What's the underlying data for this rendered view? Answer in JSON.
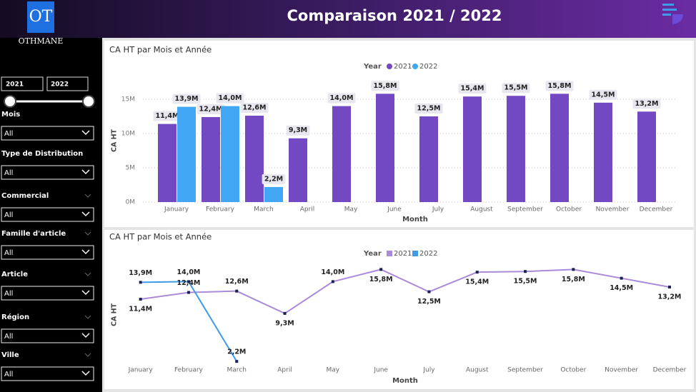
{
  "header": {
    "title": "Comparaison 2021 / 2022"
  },
  "logo": {
    "initials": "OT",
    "name": "OTHMANE"
  },
  "year_slider": {
    "from": "2021",
    "to": "2022"
  },
  "filters": [
    {
      "label": "Mois",
      "value": "All"
    },
    {
      "label": "Type de Distribution",
      "value": "All"
    },
    {
      "label": "Commercial",
      "value": "All"
    },
    {
      "label": "Famille d'article",
      "value": "All"
    },
    {
      "label": "Article",
      "value": "All"
    },
    {
      "label": "Région",
      "value": "All"
    },
    {
      "label": "Ville",
      "value": "All"
    }
  ],
  "chart_data": [
    {
      "type": "bar",
      "title": "CA HT par Mois et Année",
      "legend_title": "Year",
      "x_label": "Month",
      "y_label": "CA HT",
      "categories": [
        "January",
        "February",
        "March",
        "April",
        "May",
        "June",
        "July",
        "August",
        "September",
        "October",
        "November",
        "December"
      ],
      "series": [
        {
          "name": "2021",
          "color": "#7249c2",
          "values": [
            11400000,
            12400000,
            12600000,
            9300000,
            14000000,
            15800000,
            12500000,
            15400000,
            15500000,
            15800000,
            14500000,
            13200000
          ],
          "value_labels": [
            "11,4M",
            "12,4M",
            "12,6M",
            "9,3M",
            "14,0M",
            "15,8M",
            "12,5M",
            "15,4M",
            "15,5M",
            "15,8M",
            "14,5M",
            "13,2M"
          ]
        },
        {
          "name": "2022",
          "color": "#41a6f4",
          "values": [
            13900000,
            14000000,
            2200000,
            null,
            null,
            null,
            null,
            null,
            null,
            null,
            null,
            null
          ],
          "value_labels": [
            "13,9M",
            "14,0M",
            "2,2M",
            null,
            null,
            null,
            null,
            null,
            null,
            null,
            null,
            null
          ]
        }
      ],
      "ylim": [
        0,
        17500000
      ],
      "yticks": [
        {
          "value": 0,
          "label": "0M"
        },
        {
          "value": 5000000,
          "label": "5M"
        },
        {
          "value": 10000000,
          "label": "10M"
        },
        {
          "value": 15000000,
          "label": "15M"
        }
      ],
      "grid": true
    },
    {
      "type": "line",
      "title": "CA HT par Mois et Année",
      "legend_title": "Year",
      "x_label": "Month",
      "y_label": "CA HT",
      "categories": [
        "January",
        "February",
        "March",
        "April",
        "May",
        "June",
        "July",
        "August",
        "September",
        "October",
        "November",
        "December"
      ],
      "series": [
        {
          "name": "2021",
          "color": "#a98bd9",
          "values": [
            11400000,
            12400000,
            12600000,
            9300000,
            14000000,
            15800000,
            12500000,
            15400000,
            15500000,
            15800000,
            14500000,
            13200000
          ],
          "value_labels": [
            "11,4M",
            "12,4M",
            "12,6M",
            "9,3M",
            "14,0M",
            "15,8M",
            "12,5M",
            "15,4M",
            "15,5M",
            "15,8M",
            "14,5M",
            "13,2M"
          ]
        },
        {
          "name": "2022",
          "color": "#3d9be9",
          "values": [
            13900000,
            14000000,
            2200000,
            null,
            null,
            null,
            null,
            null,
            null,
            null,
            null,
            null
          ],
          "value_labels": [
            "13,9M",
            "14,0M",
            "2,2M",
            null,
            null,
            null,
            null,
            null,
            null,
            null,
            null,
            null
          ]
        }
      ],
      "ylim": [
        0,
        17000000
      ]
    }
  ]
}
